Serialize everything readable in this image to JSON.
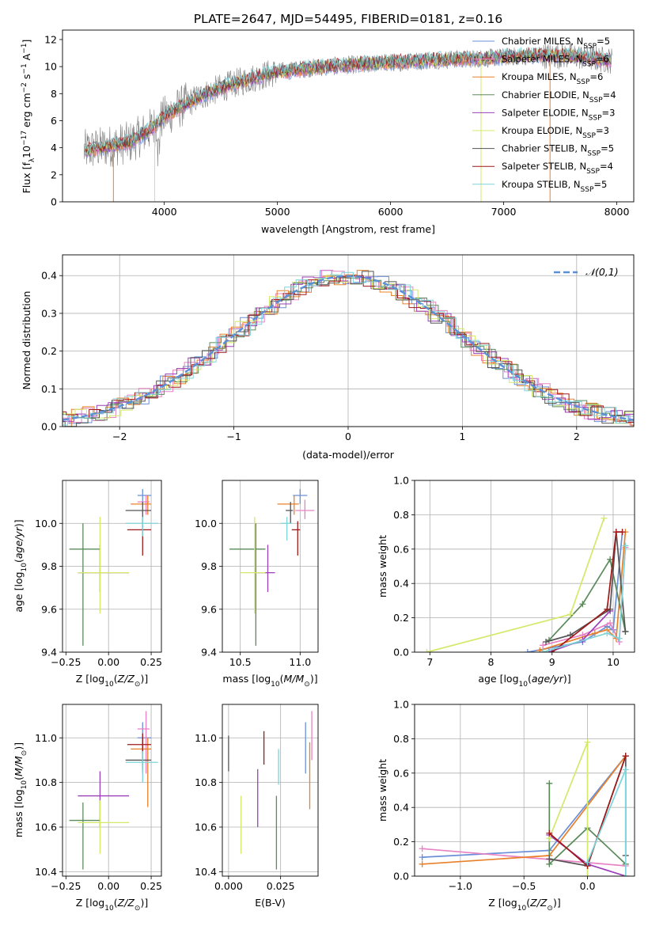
{
  "figure": {
    "title": "PLATE=2647, MJD=54495, FIBERID=0181, z=0.16"
  },
  "colors": {
    "chabrier_miles": "#6a8fd8",
    "salpeter_miles": "#e882c4",
    "kroupa_miles": "#e8802a",
    "chabrier_elodie": "#5b8a5b",
    "salpeter_elodie": "#9b40b8",
    "kroupa_elodie": "#d4e86a",
    "chabrier_stelib": "#555555",
    "salpeter_stelib": "#a01818",
    "kroupa_stelib": "#7ed4d8",
    "normal_curve": "#5b8fd8",
    "data_spectrum": "#808080"
  },
  "legend_spectrum": [
    {
      "label": "Chabrier MILES, N",
      "sub": "SSP",
      "tail": "=5",
      "color_key": "chabrier_miles"
    },
    {
      "label": "Salpeter MILES, N",
      "sub": "SSP",
      "tail": "=6",
      "color_key": "salpeter_miles"
    },
    {
      "label": "Kroupa MILES, N",
      "sub": "SSP",
      "tail": "=6",
      "color_key": "kroupa_miles"
    },
    {
      "label": "Chabrier ELODIE, N",
      "sub": "SSP",
      "tail": "=4",
      "color_key": "chabrier_elodie"
    },
    {
      "label": "Salpeter ELODIE, N",
      "sub": "SSP",
      "tail": "=3",
      "color_key": "salpeter_elodie"
    },
    {
      "label": "Kroupa ELODIE, N",
      "sub": "SSP",
      "tail": "=3",
      "color_key": "kroupa_elodie"
    },
    {
      "label": "Chabrier STELIB, N",
      "sub": "SSP",
      "tail": "=5",
      "color_key": "chabrier_stelib"
    },
    {
      "label": "Salpeter STELIB, N",
      "sub": "SSP",
      "tail": "=4",
      "color_key": "salpeter_stelib"
    },
    {
      "label": "Kroupa STELIB, N",
      "sub": "SSP",
      "tail": "=5",
      "color_key": "kroupa_stelib"
    }
  ],
  "chart_data": [
    {
      "id": "spectrum",
      "type": "line",
      "xlabel": "wavelength [Angstrom, rest frame]",
      "ylabel": "Flux [f_λ 10^-17 erg cm^-2 s^-1 A^-1]",
      "xlim": [
        3100,
        8150
      ],
      "ylim": [
        0,
        12.7
      ],
      "xticks": [
        4000,
        5000,
        6000,
        7000,
        8000
      ],
      "yticks": [
        0,
        2,
        4,
        6,
        8,
        10,
        12
      ],
      "grid": false,
      "legend": "right",
      "continuum": {
        "x": [
          3300,
          3500,
          3700,
          3900,
          4000,
          4200,
          4400,
          4600,
          4800,
          5000,
          5300,
          5600,
          6000,
          6400,
          6800,
          7200,
          7600,
          8000
        ],
        "y": [
          3.8,
          4.1,
          4.4,
          5.5,
          6.3,
          7.3,
          8.1,
          8.7,
          9.2,
          9.6,
          9.9,
          10.1,
          10.3,
          10.5,
          10.6,
          10.8,
          10.8,
          10.4
        ]
      }
    },
    {
      "id": "residual-histogram",
      "type": "bar",
      "xlabel": "(data-model)/error",
      "ylabel": "Normed distribution",
      "xlim": [
        -2.5,
        2.5
      ],
      "ylim": [
        0,
        0.455
      ],
      "xticks": [
        -2,
        -1,
        0,
        1,
        2
      ],
      "yticks": [
        0.0,
        0.1,
        0.2,
        0.3,
        0.4
      ],
      "grid": true,
      "legend_label": "𝒩(0,1)",
      "legend": "top-right",
      "normal": {
        "mean": 0,
        "sigma": 1
      }
    },
    {
      "id": "age-vs-z",
      "type": "scatter",
      "xlabel": "Z [log10(Z/Z⊙)]",
      "ylabel": "age [log10(age/yr)]",
      "xlim": [
        -0.27,
        0.31
      ],
      "ylim": [
        9.4,
        10.2
      ],
      "xticks": [
        -0.25,
        0.0,
        0.25
      ],
      "yticks": [
        9.4,
        9.6,
        9.8,
        10.0
      ],
      "grid": true,
      "points": [
        {
          "key": "chabrier_miles",
          "x": 0.2,
          "xerr": [
            0.03,
            0.05
          ],
          "y": 10.13,
          "yerr": [
            0.04,
            0.03
          ]
        },
        {
          "key": "salpeter_miles",
          "x": 0.22,
          "xerr": [
            0.05,
            0.02
          ],
          "y": 10.1,
          "yerr": [
            0.06,
            0.03
          ]
        },
        {
          "key": "kroupa_miles",
          "x": 0.23,
          "xerr": [
            0.1,
            0.02
          ],
          "y": 10.09,
          "yerr": [
            0.05,
            0.04
          ]
        },
        {
          "key": "chabrier_elodie",
          "x": -0.15,
          "xerr": [
            0.08,
            0.1
          ],
          "y": 9.88,
          "yerr": [
            0.45,
            0.12
          ]
        },
        {
          "key": "salpeter_elodie",
          "x": -0.05,
          "xerr": [
            0.13,
            0.17
          ],
          "y": 9.77,
          "yerr": [
            0.09,
            0.13
          ]
        },
        {
          "key": "kroupa_elodie",
          "x": -0.05,
          "xerr": [
            0.13,
            0.17
          ],
          "y": 9.77,
          "yerr": [
            0.19,
            0.26
          ]
        },
        {
          "key": "chabrier_stelib",
          "x": 0.2,
          "xerr": [
            0.1,
            0.05
          ],
          "y": 10.06,
          "yerr": [
            0.06,
            0.04
          ]
        },
        {
          "key": "salpeter_stelib",
          "x": 0.2,
          "xerr": [
            0.09,
            0.05
          ],
          "y": 9.97,
          "yerr": [
            0.12,
            0.04
          ]
        },
        {
          "key": "kroupa_stelib",
          "x": 0.2,
          "xerr": [
            0.1,
            0.09
          ],
          "y": 10.0,
          "yerr": [
            0.06,
            0.03
          ]
        }
      ]
    },
    {
      "id": "age-vs-mass",
      "type": "scatter",
      "xlabel": "mass [log10(M/M⊙)]",
      "ylabel": "",
      "xlim": [
        10.35,
        11.15
      ],
      "ylim": [
        9.4,
        10.2
      ],
      "xticks": [
        10.5,
        11.0
      ],
      "yticks": [
        9.4,
        9.6,
        9.8,
        10.0
      ],
      "grid": true,
      "points": [
        {
          "key": "chabrier_miles",
          "x": 11.0,
          "xerr": [
            0.06,
            0.06
          ],
          "y": 10.13,
          "yerr": [
            0.04,
            0.03
          ]
        },
        {
          "key": "salpeter_miles",
          "x": 11.04,
          "xerr": [
            0.08,
            0.08
          ],
          "y": 10.06,
          "yerr": [
            0.04,
            0.05
          ]
        },
        {
          "key": "kroupa_miles",
          "x": 10.95,
          "xerr": [
            0.14,
            0.04
          ],
          "y": 10.09,
          "yerr": [
            0.05,
            0.04
          ]
        },
        {
          "key": "chabrier_elodie",
          "x": 10.63,
          "xerr": [
            0.22,
            0.08
          ],
          "y": 9.88,
          "yerr": [
            0.45,
            0.12
          ]
        },
        {
          "key": "salpeter_elodie",
          "x": 10.73,
          "xerr": [
            0.09,
            0.06
          ],
          "y": 9.77,
          "yerr": [
            0.09,
            0.13
          ]
        },
        {
          "key": "kroupa_elodie",
          "x": 10.62,
          "xerr": [
            0.12,
            0.09
          ],
          "y": 9.77,
          "yerr": [
            0.19,
            0.26
          ]
        },
        {
          "key": "chabrier_stelib",
          "x": 10.92,
          "xerr": [
            0.04,
            0.02
          ],
          "y": 10.06,
          "yerr": [
            0.06,
            0.04
          ]
        },
        {
          "key": "salpeter_stelib",
          "x": 10.98,
          "xerr": [
            0.05,
            0.02
          ],
          "y": 9.97,
          "yerr": [
            0.12,
            0.04
          ]
        },
        {
          "key": "kroupa_stelib",
          "x": 10.89,
          "xerr": [
            0.05,
            0.04
          ],
          "y": 10.0,
          "yerr": [
            0.08,
            0.03
          ]
        }
      ]
    },
    {
      "id": "mass-weight-vs-age",
      "type": "line",
      "xlabel": "age [log10(age/yr)]",
      "ylabel": "mass weight",
      "xlim": [
        6.75,
        10.35
      ],
      "ylim": [
        0,
        1.0
      ],
      "xticks": [
        7,
        8,
        9,
        10
      ],
      "yticks": [
        0.0,
        0.2,
        0.4,
        0.6,
        0.8,
        1.0
      ],
      "grid": true,
      "series": [
        {
          "key": "chabrier_miles",
          "x": [
            8.6,
            9.5,
            9.9,
            10.0,
            10.15
          ],
          "y": [
            0.0,
            0.06,
            0.15,
            0.13,
            0.7
          ]
        },
        {
          "key": "salpeter_miles",
          "x": [
            8.85,
            9.5,
            9.95,
            10.1,
            10.2
          ],
          "y": [
            0.04,
            0.1,
            0.17,
            0.06,
            0.61
          ]
        },
        {
          "key": "kroupa_miles",
          "x": [
            8.8,
            9.7,
            9.9,
            10.05,
            10.2
          ],
          "y": [
            0.01,
            0.11,
            0.13,
            0.08,
            0.7
          ]
        },
        {
          "key": "chabrier_elodie",
          "x": [
            8.95,
            9.5,
            9.95,
            10.2
          ],
          "y": [
            0.07,
            0.28,
            0.54,
            0.12
          ]
        },
        {
          "key": "salpeter_elodie",
          "x": [
            8.95,
            9.5,
            9.95
          ],
          "y": [
            0.0,
            0.07,
            0.24
          ]
        },
        {
          "key": "kroupa_elodie",
          "x": [
            6.95,
            9.3,
            9.85
          ],
          "y": [
            0.0,
            0.22,
            0.78
          ]
        },
        {
          "key": "chabrier_stelib",
          "x": [
            8.9,
            9.3,
            9.95,
            10.05,
            10.2
          ],
          "y": [
            0.06,
            0.1,
            0.25,
            0.7,
            0.12
          ]
        },
        {
          "key": "salpeter_stelib",
          "x": [
            9.0,
            9.9,
            10.05,
            10.15
          ],
          "y": [
            0.0,
            0.25,
            0.7,
            0.7
          ]
        },
        {
          "key": "kroupa_stelib",
          "x": [
            8.85,
            9.9,
            10.1,
            10.2
          ],
          "y": [
            0.0,
            0.11,
            0.08,
            0.62
          ]
        }
      ]
    },
    {
      "id": "mass-vs-z",
      "type": "scatter",
      "xlabel": "Z [log10(Z/Z⊙)]",
      "ylabel": "mass [log10(M/M⊙)]",
      "xlim": [
        -0.27,
        0.31
      ],
      "ylim": [
        10.38,
        11.15
      ],
      "xticks": [
        -0.25,
        0.0,
        0.25
      ],
      "yticks": [
        10.4,
        10.6,
        10.8,
        11.0
      ],
      "grid": true,
      "points": [
        {
          "key": "chabrier_miles",
          "x": 0.2,
          "xerr": [
            0.03,
            0.05
          ],
          "y": 11.0,
          "yerr": [
            0.16,
            0.07
          ]
        },
        {
          "key": "salpeter_miles",
          "x": 0.22,
          "xerr": [
            0.05,
            0.02
          ],
          "y": 11.04,
          "yerr": [
            0.2,
            0.08
          ]
        },
        {
          "key": "kroupa_miles",
          "x": 0.23,
          "xerr": [
            0.1,
            0.02
          ],
          "y": 10.95,
          "yerr": [
            0.26,
            0.05
          ]
        },
        {
          "key": "chabrier_elodie",
          "x": -0.15,
          "xerr": [
            0.08,
            0.1
          ],
          "y": 10.63,
          "yerr": [
            0.22,
            0.08
          ]
        },
        {
          "key": "salpeter_elodie",
          "x": -0.05,
          "xerr": [
            0.13,
            0.17
          ],
          "y": 10.74,
          "yerr": [
            0.14,
            0.11
          ]
        },
        {
          "key": "kroupa_elodie",
          "x": -0.05,
          "xerr": [
            0.13,
            0.17
          ],
          "y": 10.62,
          "yerr": [
            0.14,
            0.1
          ]
        },
        {
          "key": "chabrier_stelib",
          "x": 0.2,
          "xerr": [
            0.1,
            0.05
          ],
          "y": 10.9,
          "yerr": [
            0.04,
            0.1
          ]
        },
        {
          "key": "salpeter_stelib",
          "x": 0.2,
          "xerr": [
            0.09,
            0.05
          ],
          "y": 10.97,
          "yerr": [
            0.08,
            0.05
          ]
        },
        {
          "key": "kroupa_stelib",
          "x": 0.2,
          "xerr": [
            0.1,
            0.09
          ],
          "y": 10.89,
          "yerr": [
            0.09,
            0.05
          ]
        }
      ]
    },
    {
      "id": "mass-vs-ebv",
      "type": "scatter",
      "xlabel": "E(B-V)",
      "ylabel": "",
      "xlim": [
        -0.003,
        0.043
      ],
      "ylim": [
        10.38,
        11.15
      ],
      "xticks": [
        0.0,
        0.025
      ],
      "yticks": [
        10.4,
        10.6,
        10.8,
        11.0
      ],
      "grid": true,
      "points": [
        {
          "key": "chabrier_miles",
          "x": 0.037,
          "y": 10.95,
          "yerr": [
            0.11,
            0.12
          ]
        },
        {
          "key": "salpeter_miles",
          "x": 0.04,
          "y": 11.04,
          "yerr": [
            0.14,
            0.08
          ]
        },
        {
          "key": "kroupa_miles",
          "x": 0.039,
          "y": 10.84,
          "yerr": [
            0.16,
            0.14
          ]
        },
        {
          "key": "chabrier_elodie",
          "x": 0.023,
          "y": 10.6,
          "yerr": [
            0.19,
            0.14
          ]
        },
        {
          "key": "salpeter_elodie",
          "x": 0.014,
          "y": 10.73,
          "yerr": [
            0.13,
            0.13
          ]
        },
        {
          "key": "kroupa_elodie",
          "x": 0.006,
          "y": 10.61,
          "yerr": [
            0.13,
            0.13
          ]
        },
        {
          "key": "chabrier_stelib",
          "x": 0.0,
          "y": 10.93,
          "yerr": [
            0.08,
            0.08
          ]
        },
        {
          "key": "salpeter_stelib",
          "x": 0.017,
          "y": 10.96,
          "yerr": [
            0.08,
            0.07
          ]
        },
        {
          "key": "kroupa_stelib",
          "x": 0.024,
          "y": 10.87,
          "yerr": [
            0.08,
            0.08
          ]
        }
      ]
    },
    {
      "id": "mass-weight-vs-z",
      "type": "line",
      "xlabel": "Z [log10(Z/Z⊙)]",
      "ylabel": "mass weight",
      "xlim": [
        -1.36,
        0.37
      ],
      "ylim": [
        0,
        1.0
      ],
      "xticks": [
        -1.0,
        -0.5,
        0.0
      ],
      "yticks": [
        0.0,
        0.2,
        0.4,
        0.6,
        0.8,
        1.0
      ],
      "grid": true,
      "series": [
        {
          "key": "chabrier_miles",
          "x": [
            -1.3,
            -0.3,
            0.3
          ],
          "y": [
            0.11,
            0.15,
            0.7
          ]
        },
        {
          "key": "salpeter_miles",
          "x": [
            -1.3,
            0.3
          ],
          "y": [
            0.16,
            0.06
          ]
        },
        {
          "key": "kroupa_miles",
          "x": [
            -1.3,
            -0.3,
            0.3
          ],
          "y": [
            0.07,
            0.12,
            0.7
          ]
        },
        {
          "key": "chabrier_elodie",
          "x": [
            -0.3,
            -0.3,
            0.0,
            0.3
          ],
          "y": [
            0.54,
            0.07,
            0.28,
            0.07
          ]
        },
        {
          "key": "salpeter_elodie",
          "x": [
            -0.3,
            0.0,
            0.3
          ],
          "y": [
            0.24,
            0.07,
            0.0
          ]
        },
        {
          "key": "kroupa_elodie",
          "x": [
            -0.3,
            0.0,
            0.0
          ],
          "y": [
            0.22,
            0.78,
            0.0
          ]
        },
        {
          "key": "chabrier_stelib",
          "x": [
            -0.3,
            0.0,
            0.3,
            0.3
          ],
          "y": [
            0.1,
            0.06,
            0.7,
            0.12
          ]
        },
        {
          "key": "salpeter_stelib",
          "x": [
            -0.3,
            0.0,
            0.3
          ],
          "y": [
            0.25,
            0.06,
            0.7
          ]
        },
        {
          "key": "kroupa_stelib",
          "x": [
            0.0,
            0.3,
            0.3
          ],
          "y": [
            0.08,
            0.62,
            0.0
          ]
        }
      ]
    }
  ]
}
